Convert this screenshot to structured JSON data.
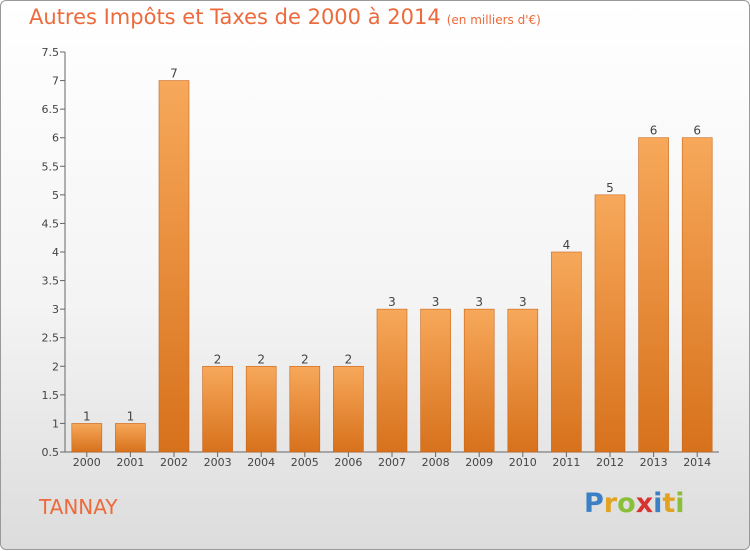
{
  "header": {
    "title": "Autres Impôts et Taxes de 2000 à 2014",
    "unit": "(en milliers d'€)"
  },
  "commune": "TANNAY",
  "logo": {
    "letters": [
      "P",
      "r",
      "o",
      "x",
      "i",
      "t",
      "i"
    ],
    "colors": [
      "#3b7fc4",
      "#e2a322",
      "#8bbf3a",
      "#d9332f",
      "#3b7fc4",
      "#e2a322",
      "#8bbf3a"
    ]
  },
  "colors": {
    "bar_top": "#f7a85a",
    "bar_bottom": "#d7711c",
    "accent": "#ec6a3b"
  },
  "chart_data": {
    "type": "bar",
    "categories": [
      "2000",
      "2001",
      "2002",
      "2003",
      "2004",
      "2005",
      "2006",
      "2007",
      "2008",
      "2009",
      "2010",
      "2011",
      "2012",
      "2013",
      "2014"
    ],
    "values": [
      1,
      1,
      7,
      2,
      2,
      2,
      2,
      3,
      3,
      3,
      3,
      4,
      5,
      6,
      6
    ],
    "data_labels": [
      "1",
      "1",
      "7",
      "2",
      "2",
      "2",
      "2",
      "3",
      "3",
      "3",
      "3",
      "4",
      "5",
      "6",
      "6"
    ],
    "ylim": [
      0.5,
      7.5
    ],
    "yticks": [
      0.5,
      1,
      1.5,
      2,
      2.5,
      3,
      3.5,
      4,
      4.5,
      5,
      5.5,
      6,
      6.5,
      7,
      7.5
    ],
    "ytick_labels": [
      "0.5",
      "1",
      "1.5",
      "2",
      "2.5",
      "3",
      "3.5",
      "4",
      "4.5",
      "5",
      "5.5",
      "6",
      "6.5",
      "7",
      "7.5"
    ],
    "grid": false
  }
}
